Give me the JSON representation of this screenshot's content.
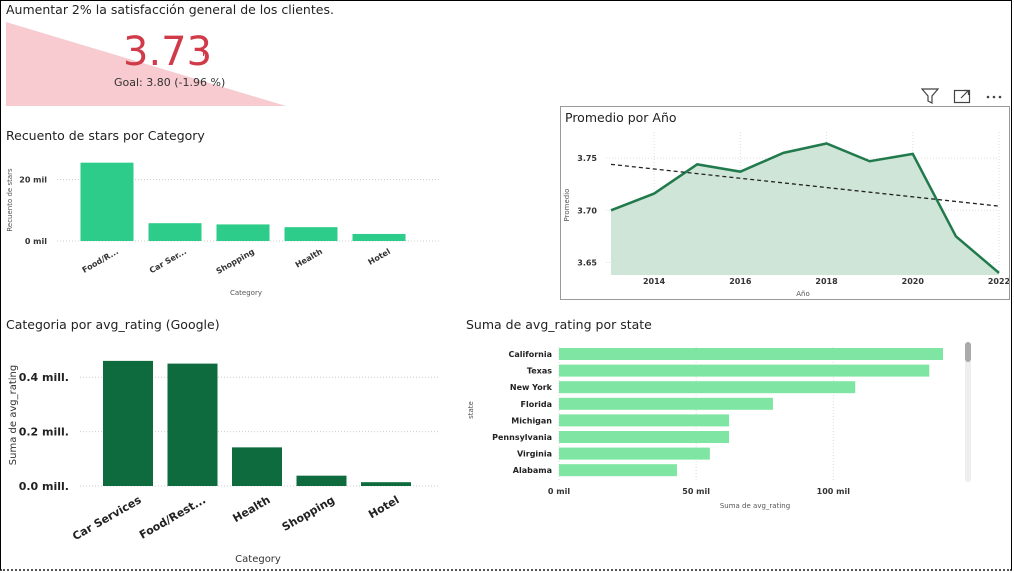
{
  "kpi": {
    "title": "Aumentar 2% la satisfacción general de los clientes.",
    "value": "3.73",
    "goal_text": "Goal: 3.80 (-1.96 %)",
    "accent_color": "#d03a49"
  },
  "toolbar": {
    "icons": [
      "filter-icon",
      "focus-mode-icon",
      "more-options-icon"
    ]
  },
  "charts": {
    "stars": {
      "title": "Recuento de stars por Category",
      "xlabel": "Category",
      "ylabel": "Recuento de stars",
      "ticks": [
        "0 mil",
        "20 mil"
      ],
      "color": "#2ecc8a"
    },
    "promedio": {
      "title": "Promedio por Año",
      "xlabel": "Año",
      "ylabel": "Promedio",
      "yticks": [
        "3.65",
        "3.70",
        "3.75"
      ],
      "xticks": [
        "2014",
        "2016",
        "2018",
        "2020",
        "2022"
      ],
      "color": "#217a4c"
    },
    "google": {
      "title": "Categoria por avg_rating (Google)",
      "xlabel": "Category",
      "ylabel": "Suma de avg_rating",
      "ticks": [
        "0.0 mill.",
        "0.2 mill.",
        "0.4 mill."
      ],
      "color": "#0e6b3e"
    },
    "state": {
      "title": "Suma de avg_rating por state",
      "xlabel": "Suma de avg_rating",
      "ylabel": "state",
      "ticks": [
        "0 mil",
        "50 mil",
        "100 mil"
      ],
      "color": "#7ee6a2"
    }
  },
  "chart_data": [
    {
      "type": "bar",
      "title": "Recuento de stars por Category",
      "categories": [
        "Food/R...",
        "Car Ser...",
        "Shopping",
        "Health",
        "Hotel"
      ],
      "values": [
        25500,
        5800,
        5400,
        4500,
        2300
      ],
      "xlabel": "Category",
      "ylabel": "Recuento de stars",
      "ylim": [
        0,
        28000
      ]
    },
    {
      "type": "area",
      "title": "Promedio por Año",
      "x": [
        2013,
        2014,
        2015,
        2016,
        2017,
        2018,
        2019,
        2020,
        2021,
        2022
      ],
      "values": [
        3.7,
        3.716,
        3.744,
        3.737,
        3.755,
        3.764,
        3.747,
        3.754,
        3.675,
        3.64
      ],
      "trend": [
        3.744,
        3.704
      ],
      "xlabel": "Año",
      "ylabel": "Promedio",
      "xlim": [
        2013,
        2022
      ],
      "ylim": [
        3.638,
        3.775
      ]
    },
    {
      "type": "bar",
      "title": "Categoria por avg_rating (Google)",
      "categories": [
        "Car Services",
        "Food/Rest...",
        "Health",
        "Shopping",
        "Hotel"
      ],
      "values": [
        460000,
        450000,
        142000,
        38000,
        14000
      ],
      "xlabel": "Category",
      "ylabel": "Suma de avg_rating",
      "ylim": [
        0,
        500000
      ]
    },
    {
      "type": "bar",
      "title": "Suma de avg_rating por state",
      "categories": [
        "California",
        "Texas",
        "New York",
        "Florida",
        "Michigan",
        "Pennsylvania",
        "Virginia",
        "Alabama"
      ],
      "values": [
        140000,
        135000,
        108000,
        78000,
        62000,
        62000,
        55000,
        43000
      ],
      "xlabel": "Suma de avg_rating",
      "ylabel": "state",
      "xlim": [
        0,
        140000
      ]
    }
  ]
}
